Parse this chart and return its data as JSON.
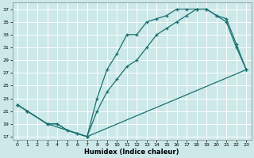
{
  "xlabel": "Humidex (Indice chaleur)",
  "background_color": "#cce8e8",
  "grid_color": "#b0d8d8",
  "line_color": "#1a7070",
  "ylim": [
    16.5,
    38
  ],
  "xlim": [
    -0.5,
    23.5
  ],
  "yticks": [
    17,
    19,
    21,
    23,
    25,
    27,
    29,
    31,
    33,
    35,
    37
  ],
  "xticks": [
    0,
    1,
    2,
    3,
    4,
    5,
    6,
    7,
    8,
    9,
    10,
    11,
    12,
    13,
    14,
    15,
    16,
    17,
    18,
    19,
    20,
    21,
    22,
    23
  ],
  "line1_x": [
    0,
    1,
    3,
    4,
    5,
    6,
    7,
    8,
    9,
    10,
    11,
    12,
    13,
    14,
    15,
    16,
    17,
    18,
    19,
    20,
    21,
    22,
    23
  ],
  "line1_y": [
    22,
    21,
    19,
    19,
    18,
    17.5,
    17,
    23,
    27.5,
    30,
    33,
    33,
    35,
    35.5,
    36,
    37,
    37,
    37,
    37,
    36,
    35,
    31,
    27.5
  ],
  "line2_x": [
    0,
    1,
    3,
    4,
    5,
    6,
    7,
    8,
    9,
    10,
    11,
    12,
    13,
    14,
    15,
    16,
    17,
    18,
    19,
    20,
    21,
    22,
    23
  ],
  "line2_y": [
    22,
    21,
    19,
    19,
    18,
    17.5,
    17,
    21,
    24,
    26,
    28,
    29,
    31,
    33,
    34,
    35,
    36,
    37,
    37,
    36,
    35.5,
    31.5,
    27.5
  ],
  "line3_x": [
    0,
    1,
    3,
    7,
    23
  ],
  "line3_y": [
    22,
    21,
    19,
    17,
    27.5
  ]
}
